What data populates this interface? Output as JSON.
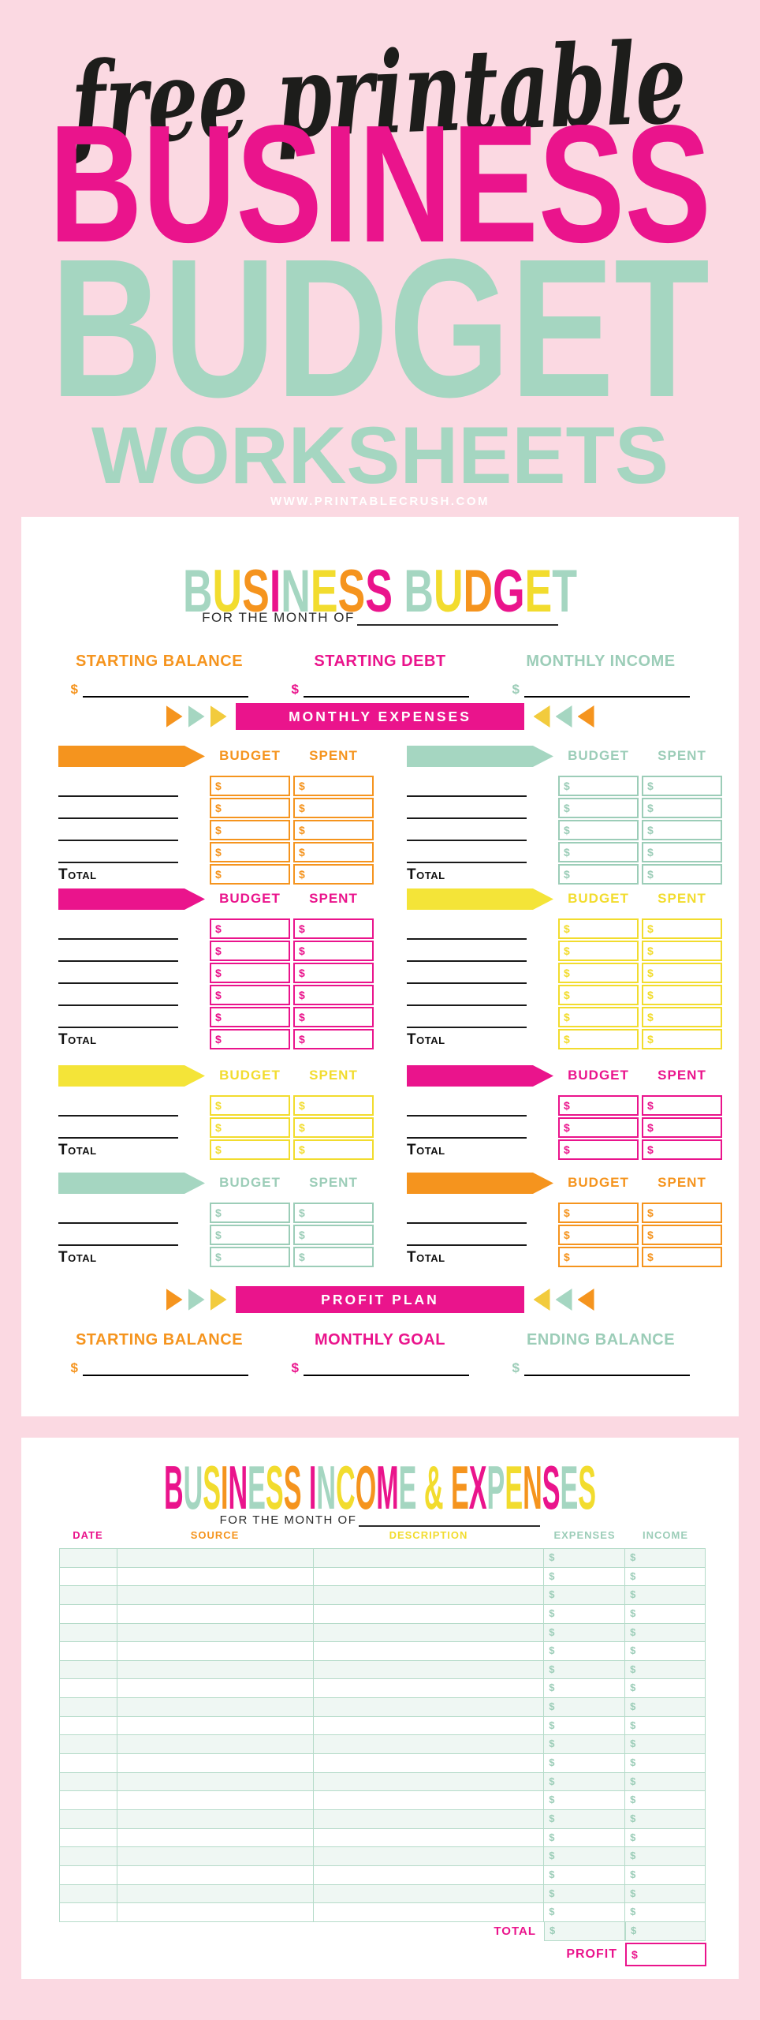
{
  "colors": {
    "magenta": "#EA148C",
    "orange": "#F5941E",
    "mint": "#A5D6C1",
    "mint_text": "#9CCDB8",
    "yellow": "#F2DC2E",
    "tri_yellow": "#F2CB3D",
    "pink_bg": "#FBD9E2",
    "ink": "#1D1D1B",
    "white": "#FFFFFF"
  },
  "poster": {
    "script_title": "free printable",
    "title_line1": "BUSINESS",
    "title_line2": "BUDGET",
    "title_line3": "WORKSHEETS",
    "website": "WWW.PRINTABLECRUSH.COM"
  },
  "banner_arrows": {
    "left": [
      "orange",
      "mint",
      "tri_yellow"
    ],
    "right": [
      "tri_yellow",
      "mint",
      "orange"
    ]
  },
  "page1": {
    "title": [
      {
        "ch": "B",
        "c": "mint"
      },
      {
        "ch": "U",
        "c": "yellow"
      },
      {
        "ch": "S",
        "c": "orange"
      },
      {
        "ch": "I",
        "c": "magenta"
      },
      {
        "ch": "N",
        "c": "mint"
      },
      {
        "ch": "E",
        "c": "yellow"
      },
      {
        "ch": "S",
        "c": "orange"
      },
      {
        "ch": "S",
        "c": "magenta"
      },
      {
        "ch": " ",
        "c": "mint"
      },
      {
        "ch": "B",
        "c": "mint"
      },
      {
        "ch": "U",
        "c": "yellow"
      },
      {
        "ch": "D",
        "c": "orange"
      },
      {
        "ch": "G",
        "c": "magenta"
      },
      {
        "ch": "E",
        "c": "yellow"
      },
      {
        "ch": "T",
        "c": "mint"
      }
    ],
    "month_label": "FOR THE MONTH OF",
    "fields_top": [
      {
        "label": "STARTING BALANCE",
        "color": "orange",
        "currency": "$"
      },
      {
        "label": "STARTING DEBT",
        "color": "magenta",
        "currency": "$"
      },
      {
        "label": "MONTHLY INCOME",
        "color": "mint",
        "currency": "$"
      }
    ],
    "expenses_banner": "MONTHLY EXPENSES",
    "profit_banner": "PROFIT PLAN",
    "budget_header": "BUDGET",
    "spent_header": "SPENT",
    "total_label": "Total",
    "currency": "$",
    "groups": [
      [
        {
          "color": "orange",
          "rows": 4
        },
        {
          "color": "mint",
          "rows": 4
        }
      ],
      [
        {
          "color": "magenta",
          "rows": 5
        },
        {
          "color": "yellow",
          "rows": 5
        }
      ],
      [
        {
          "color": "yellow",
          "rows": 2
        },
        {
          "color": "magenta",
          "rows": 2
        }
      ],
      [
        {
          "color": "mint",
          "rows": 2
        },
        {
          "color": "orange",
          "rows": 2
        }
      ]
    ],
    "fields_bottom": [
      {
        "label": "STARTING BALANCE",
        "color": "orange",
        "currency": "$"
      },
      {
        "label": "MONTHLY GOAL",
        "color": "magenta",
        "currency": "$"
      },
      {
        "label": "ENDING BALANCE",
        "color": "mint",
        "currency": "$"
      }
    ]
  },
  "page2": {
    "title": [
      {
        "ch": "B",
        "c": "magenta"
      },
      {
        "ch": "U",
        "c": "mint"
      },
      {
        "ch": "S",
        "c": "yellow"
      },
      {
        "ch": "I",
        "c": "orange"
      },
      {
        "ch": "N",
        "c": "magenta"
      },
      {
        "ch": "E",
        "c": "mint"
      },
      {
        "ch": "S",
        "c": "yellow"
      },
      {
        "ch": "S",
        "c": "orange"
      },
      {
        "ch": " ",
        "c": "mint"
      },
      {
        "ch": "I",
        "c": "magenta"
      },
      {
        "ch": "N",
        "c": "mint"
      },
      {
        "ch": "C",
        "c": "yellow"
      },
      {
        "ch": "O",
        "c": "orange"
      },
      {
        "ch": "M",
        "c": "magenta"
      },
      {
        "ch": "E",
        "c": "mint"
      },
      {
        "ch": " ",
        "c": "mint"
      },
      {
        "ch": "&",
        "c": "yellow"
      },
      {
        "ch": " ",
        "c": "mint"
      },
      {
        "ch": "E",
        "c": "orange"
      },
      {
        "ch": "X",
        "c": "magenta"
      },
      {
        "ch": "P",
        "c": "mint"
      },
      {
        "ch": "E",
        "c": "yellow"
      },
      {
        "ch": "N",
        "c": "orange"
      },
      {
        "ch": "S",
        "c": "magenta"
      },
      {
        "ch": "E",
        "c": "mint"
      },
      {
        "ch": "S",
        "c": "yellow"
      }
    ],
    "month_label": "FOR THE MONTH OF",
    "columns": [
      {
        "label": "DATE",
        "color": "magenta"
      },
      {
        "label": "SOURCE",
        "color": "orange"
      },
      {
        "label": "DESCRIPTION",
        "color": "yellow"
      },
      {
        "label": "EXPENSES",
        "color": "mint_text"
      },
      {
        "label": "INCOME",
        "color": "mint_text"
      }
    ],
    "row_count": 20,
    "total_label": "TOTAL",
    "profit_label": "PROFIT",
    "currency": "$"
  }
}
